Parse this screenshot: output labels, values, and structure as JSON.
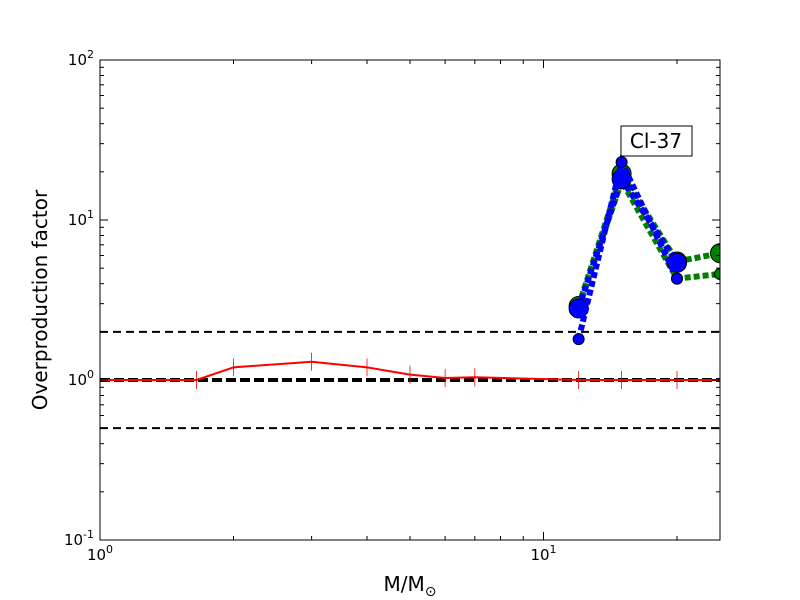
{
  "chart_data": {
    "type": "line",
    "xlabel": "M/M⊙",
    "xlabel_main": "M/M",
    "xlabel_sub": "⊙",
    "ylabel": "Overproduction factor",
    "xscale": "log",
    "yscale": "log",
    "xlim": [
      1,
      25
    ],
    "ylim": [
      0.1,
      100
    ],
    "x_ticks": [
      {
        "base": "10",
        "exp": "0",
        "value": 1
      },
      {
        "base": "10",
        "exp": "1",
        "value": 10
      }
    ],
    "y_ticks": [
      {
        "base": "10",
        "exp": "-1",
        "value": 0.1
      },
      {
        "base": "10",
        "exp": "0",
        "value": 1
      },
      {
        "base": "10",
        "exp": "1",
        "value": 10
      },
      {
        "base": "10",
        "exp": "2",
        "value": 100
      }
    ],
    "reference_lines": [
      {
        "y": 2.0,
        "style": "dashed",
        "color": "#000000"
      },
      {
        "y": 1.0,
        "style": "dashed-thick",
        "color": "#000000"
      },
      {
        "y": 0.5,
        "style": "dashed",
        "color": "#000000"
      }
    ],
    "series": [
      {
        "style": "solid",
        "color": "#ff0000",
        "marker": "vline",
        "x": [
          1,
          1.65,
          2,
          3,
          4,
          5,
          6,
          7,
          12,
          15,
          20,
          25
        ],
        "y": [
          1.0,
          1.0,
          1.2,
          1.3,
          1.2,
          1.08,
          1.03,
          1.04,
          1.0,
          1.0,
          1.0,
          1.0
        ]
      },
      {
        "style": "dotted-thick",
        "color": "#008000",
        "marker": "circle-large",
        "x": [
          12,
          15,
          20,
          25
        ],
        "y": [
          2.9,
          19.5,
          5.5,
          6.2
        ]
      },
      {
        "style": "dotted-thick",
        "color": "#008000",
        "marker": "circle-small",
        "x": [
          12,
          15,
          20,
          25
        ],
        "y": [
          2.9,
          17.5,
          4.3,
          4.6
        ]
      },
      {
        "style": "dotted-thick",
        "color": "#0000ff",
        "marker": "circle-large",
        "x": [
          12,
          15,
          20
        ],
        "y": [
          2.8,
          18.0,
          5.4
        ]
      },
      {
        "style": "dotted-thick",
        "color": "#0000ff",
        "marker": "circle-small",
        "x": [
          12,
          15,
          20
        ],
        "y": [
          1.8,
          23.0,
          4.3
        ]
      }
    ],
    "annotation": {
      "text": "Cl-37"
    }
  }
}
